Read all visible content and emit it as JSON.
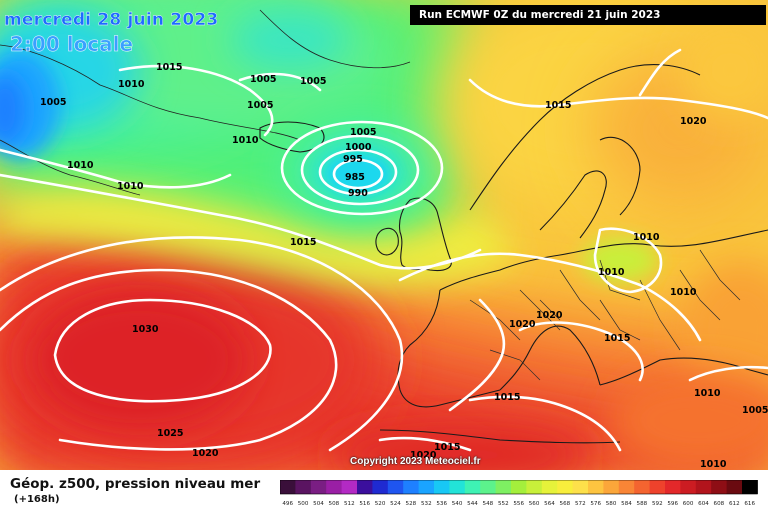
{
  "header": {
    "date": "mercredi 28 juin 2023",
    "time": "2:00 locale",
    "run": "Run ECMWF 0Z du mercredi 21 juin 2023"
  },
  "copyright": "Copyright 2023 Meteociel.fr",
  "legend": {
    "title": "Géop. z500, pression niveau mer",
    "subtitle": "(+168h)",
    "ticks": [
      "496",
      "500",
      "504",
      "508",
      "512",
      "516",
      "520",
      "524",
      "528",
      "532",
      "536",
      "540",
      "544",
      "548",
      "552",
      "556",
      "560",
      "564",
      "568",
      "572",
      "576",
      "580",
      "584",
      "588",
      "592",
      "596",
      "600",
      "604",
      "608",
      "612",
      "616"
    ],
    "colors": [
      "#3a0f3a",
      "#5a1461",
      "#7a1e83",
      "#9a1fa5",
      "#b32ac4",
      "#3b0f9d",
      "#1f2ad1",
      "#1f55f0",
      "#1e80ff",
      "#1aa4ff",
      "#18c8f5",
      "#22e3d8",
      "#3ef2b4",
      "#5cf28c",
      "#7ef062",
      "#a4ef3c",
      "#c8f03a",
      "#e6f23a",
      "#f8ee3c",
      "#fde04a",
      "#fdc440",
      "#fba63a",
      "#f98536",
      "#f46430",
      "#ee422c",
      "#e3282a",
      "#cc1c22",
      "#b2141c",
      "#8e0e15",
      "#6a0a10",
      "#000000"
    ],
    "colors_meaning": "z500 geopotential height color scale (dam)"
  },
  "isobar_labels": [
    "1015",
    "1010",
    "1005",
    "1005",
    "1005",
    "1005",
    "1010",
    "1010",
    "1010",
    "1005",
    "1000",
    "995",
    "985",
    "990",
    "1015",
    "1015",
    "1020",
    "1010",
    "1010",
    "1010",
    "1020",
    "1020",
    "1015",
    "1015",
    "1030",
    "1025",
    "1020",
    "1020",
    "1015",
    "1010",
    "1005",
    "1010"
  ]
}
